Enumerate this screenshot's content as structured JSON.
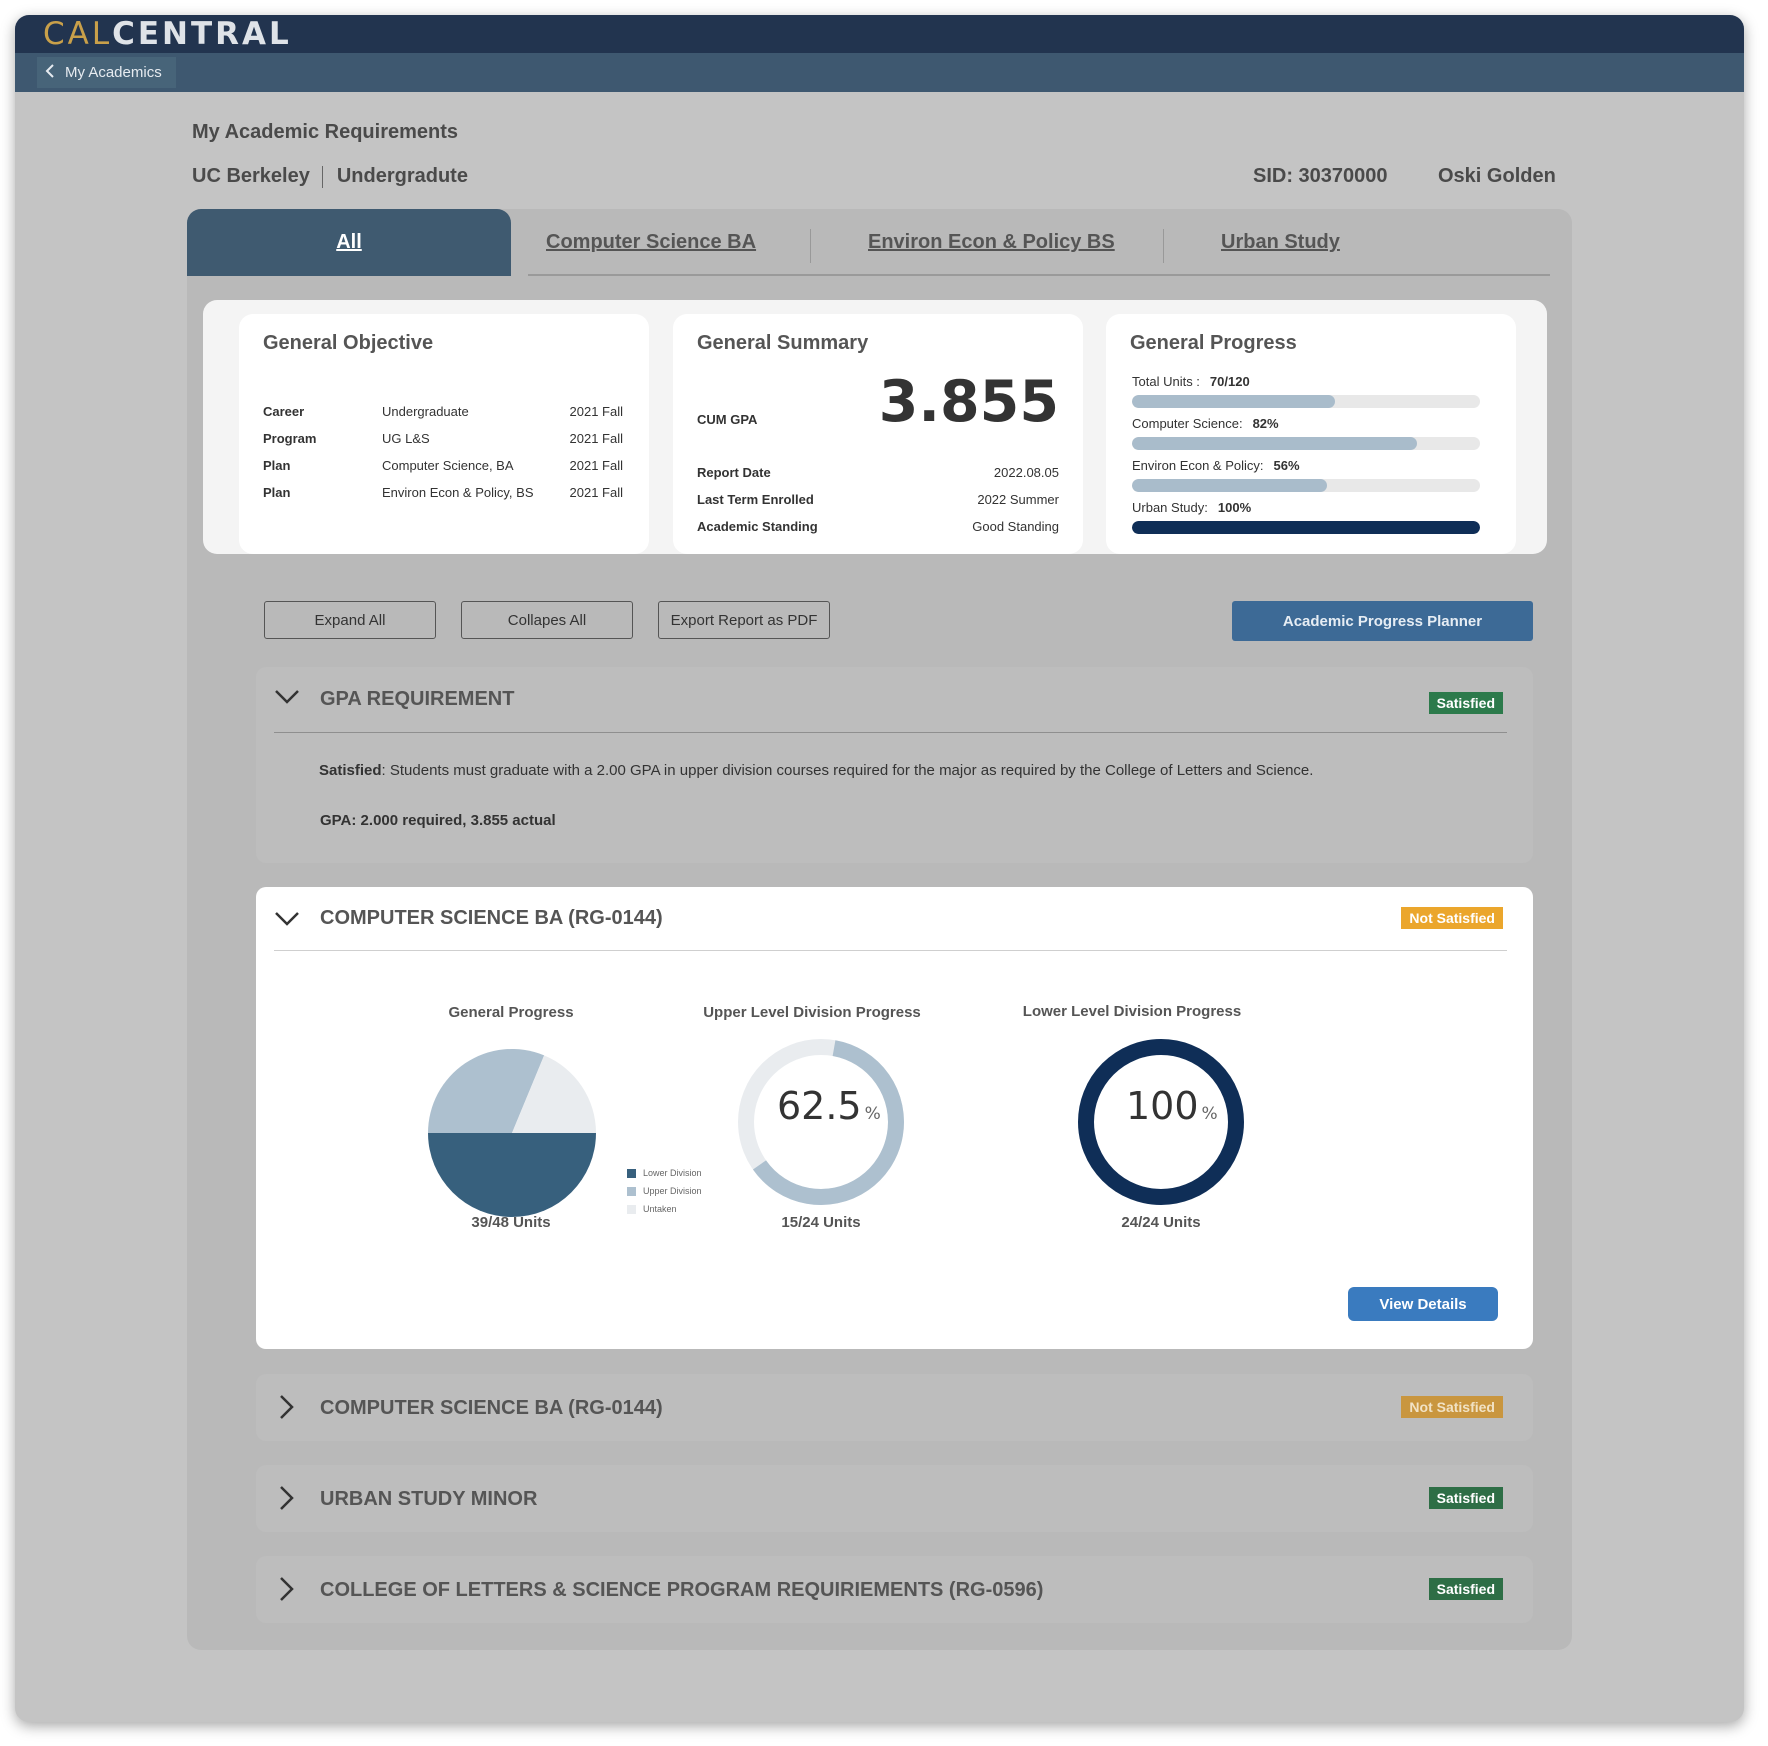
{
  "header": {
    "logo_cal": "CAL",
    "logo_central": "CENTRAL",
    "back_label": "My Academics"
  },
  "page": {
    "title": "My Academic Requirements",
    "institution": "UC Berkeley",
    "career": "Undergradute",
    "sid": "SID: 30370000",
    "student_name": "Oski Golden"
  },
  "tabs": [
    {
      "label": "All",
      "active": true
    },
    {
      "label": "Computer Science BA"
    },
    {
      "label": "Environ Econ &  Policy BS"
    },
    {
      "label": "Urban Study"
    }
  ],
  "objective": {
    "title": "General Objective",
    "rows": [
      {
        "key": "Career",
        "value": "Undergraduate",
        "term": "2021 Fall"
      },
      {
        "key": "Program",
        "value": "UG L&S",
        "term": "2021 Fall"
      },
      {
        "key": "Plan",
        "value": "Computer Science, BA",
        "term": "2021 Fall"
      },
      {
        "key": "Plan",
        "value": "Environ Econ & Policy, BS",
        "term": "2021 Fall"
      }
    ]
  },
  "summary": {
    "title": "General Summary",
    "gpa_label": "CUM GPA",
    "gpa_value": "3.855",
    "rows": [
      {
        "key": "Report Date",
        "value": "2022.08.05"
      },
      {
        "key": "Last Term Enrolled",
        "value": "2022 Summer"
      },
      {
        "key": "Academic Standing",
        "value": "Good Standing"
      }
    ]
  },
  "progress": {
    "title": "General Progress",
    "items": [
      {
        "label": "Total Units :",
        "value": "70/120",
        "fraction": 0.583,
        "color": "#a9bccb"
      },
      {
        "label": "Computer Science:",
        "value": "82%",
        "fraction": 0.82,
        "color": "#a9bccb"
      },
      {
        "label": "Environ Econ & Policy:",
        "value": "56%",
        "fraction": 0.56,
        "color": "#a9bccb"
      },
      {
        "label": "Urban Study:",
        "value": "100%",
        "fraction": 1.0,
        "color": "#0f2e57"
      }
    ]
  },
  "actions": {
    "expand_all": "Expand All",
    "collapse_all": "Collapes All",
    "export_pdf": "Export Report as PDF",
    "planner": "Academic Progress Planner"
  },
  "sections": {
    "gpa": {
      "title": "GPA REQUIREMENT",
      "status": "Satisfied",
      "desc_strong": "Satisfied",
      "desc_text": ":  Students must graduate with a 2.00 GPA in upper division courses required for the major as required by the College of Letters and Science.",
      "gpa_line": "GPA: 2.000 required, 3.855 actual"
    },
    "cs_expanded": {
      "title": "COMPUTER SCIENCE BA (RG-0144)",
      "status": "Not Satisfied",
      "general": {
        "title": "General Progress",
        "units": "39/48 Units"
      },
      "upper": {
        "title": "Upper Level Division Progress",
        "value": "62.5",
        "unit": "%",
        "units": "15/24 Units",
        "fraction": 0.625
      },
      "lower": {
        "title": "Lower Level Division Progress",
        "value": "100",
        "unit": "%",
        "units": "24/24 Units",
        "fraction": 1.0
      },
      "legend": [
        "Lower Division",
        "Upper Division",
        "Untaken"
      ],
      "view_details": "View Details"
    },
    "cs_collapsed": {
      "title": "COMPUTER SCIENCE BA (RG-0144)",
      "status": "Not Satisfied"
    },
    "urban": {
      "title": "URBAN STUDY MINOR",
      "status": "Satisfied"
    },
    "ls": {
      "title": "COLLEGE OF LETTERS & SCIENCE PROGRAM REQUIRIEMENTS (RG-0596)",
      "status": "Satisfied"
    }
  },
  "chart_data": {
    "type": "pie",
    "title": "General Progress",
    "categories": [
      "Lower Division",
      "Upper Division",
      "Untaken"
    ],
    "values": [
      24,
      15,
      9
    ],
    "colors": {
      "Lower Division": "#37607d",
      "Upper Division": "#adc0cf",
      "Untaken": "#e9ecef"
    }
  }
}
